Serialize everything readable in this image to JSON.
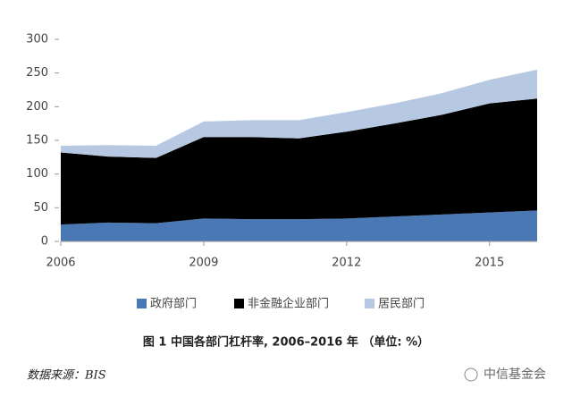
{
  "chart_data": {
    "type": "stacked_area",
    "x": [
      2006,
      2007,
      2008,
      2009,
      2010,
      2011,
      2012,
      2013,
      2014,
      2015,
      2016
    ],
    "series": [
      {
        "name": "政府部门",
        "color": "#4a78b4",
        "values": [
          25,
          28,
          27,
          34,
          33,
          33,
          34,
          37,
          40,
          43,
          46
        ]
      },
      {
        "name": "非金融企业部门",
        "color": "#000000",
        "values": [
          107,
          98,
          97,
          121,
          122,
          120,
          129,
          138,
          148,
          162,
          166
        ]
      },
      {
        "name": "居民部门",
        "color": "#b7c9e2",
        "values": [
          10,
          17,
          18,
          23,
          25,
          27,
          29,
          30,
          32,
          35,
          43
        ]
      }
    ],
    "xlim": [
      2006,
      2016
    ],
    "xticks": [
      2006,
      2009,
      2012,
      2015
    ],
    "ylim": [
      0,
      300
    ],
    "yticks": [
      0,
      50,
      100,
      150,
      200,
      250,
      300
    ],
    "caption": "图 1  中国各部门杠杆率, 2006–2016 年 （单位: %）",
    "source": "数据来源：BIS",
    "watermark": "中信基金会"
  }
}
